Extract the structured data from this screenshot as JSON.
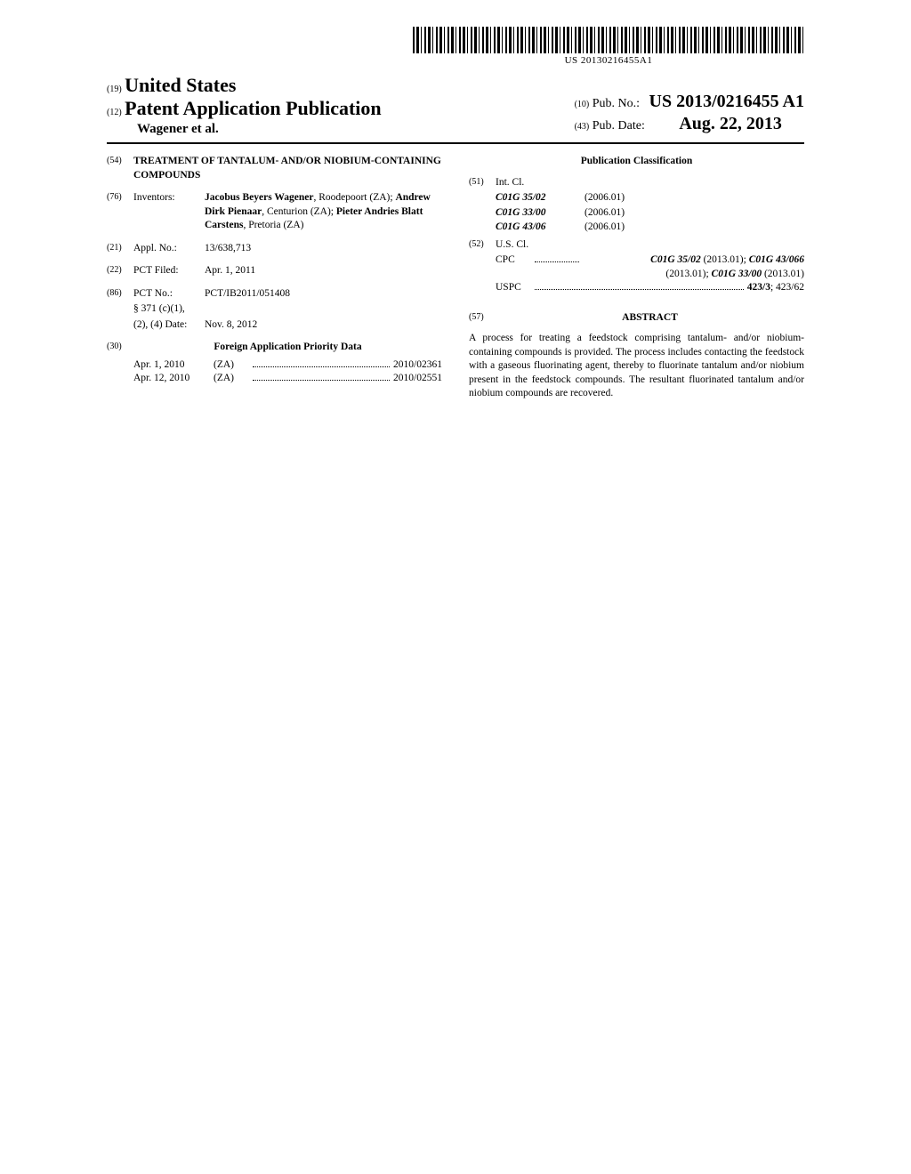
{
  "barcode_text": "US 20130216455A1",
  "header": {
    "country_num": "(19)",
    "country": "United States",
    "doc_type_num": "(12)",
    "doc_type": "Patent Application Publication",
    "authors": "Wagener et al.",
    "pub_no_num": "(10)",
    "pub_no_label": "Pub. No.:",
    "pub_no": "US 2013/0216455 A1",
    "pub_date_num": "(43)",
    "pub_date_label": "Pub. Date:",
    "pub_date": "Aug. 22, 2013"
  },
  "left": {
    "title_num": "(54)",
    "title": "TREATMENT OF TANTALUM- AND/OR NIOBIUM-CONTAINING COMPOUNDS",
    "inventors_num": "(76)",
    "inventors_label": "Inventors:",
    "inventors_html": "Jacobus Beyers Wagener|, Roodepoort (ZA); |Andrew Dirk Pienaar|, Centurion (ZA); |Pieter Andries Blatt Carstens|, Pretoria (ZA)",
    "appl_num_num": "(21)",
    "appl_num_label": "Appl. No.:",
    "appl_num": "13/638,713",
    "pct_filed_num": "(22)",
    "pct_filed_label": "PCT Filed:",
    "pct_filed": "Apr. 1, 2011",
    "pct_no_num": "(86)",
    "pct_no_label": "PCT No.:",
    "pct_no": "PCT/IB2011/051408",
    "s371_label": "§ 371 (c)(1),",
    "s371_date_label": "(2), (4) Date:",
    "s371_date": "Nov. 8, 2012",
    "foreign_num": "(30)",
    "foreign_heading": "Foreign Application Priority Data",
    "priority": [
      {
        "date": "Apr. 1, 2010",
        "cc": "(ZA)",
        "num": "2010/02361"
      },
      {
        "date": "Apr. 12, 2010",
        "cc": "(ZA)",
        "num": "2010/02551"
      }
    ]
  },
  "right": {
    "classification_heading": "Publication Classification",
    "intcl_num": "(51)",
    "intcl_label": "Int. Cl.",
    "intcl": [
      {
        "code": "C01G 35/02",
        "ver": "(2006.01)"
      },
      {
        "code": "C01G 33/00",
        "ver": "(2006.01)"
      },
      {
        "code": "C01G 43/06",
        "ver": "(2006.01)"
      }
    ],
    "uscl_num": "(52)",
    "uscl_label": "U.S. Cl.",
    "cpc_label": "CPC",
    "cpc_line1": "C01G 35/02 (2013.01); C01G 43/066",
    "cpc_line2": "(2013.01); C01G 33/00 (2013.01)",
    "uspc_label": "USPC",
    "uspc_val_bold": "423/3",
    "uspc_val_rest": "; 423/62",
    "abstract_num": "(57)",
    "abstract_heading": "ABSTRACT",
    "abstract_text": "A process for treating a feedstock comprising tantalum- and/or niobium-containing compounds is provided. The process includes contacting the feedstock with a gaseous fluorinating agent, thereby to fluorinate tantalum and/or niobium present in the feedstock compounds. The resultant fluorinated tantalum and/or niobium compounds are recovered."
  }
}
